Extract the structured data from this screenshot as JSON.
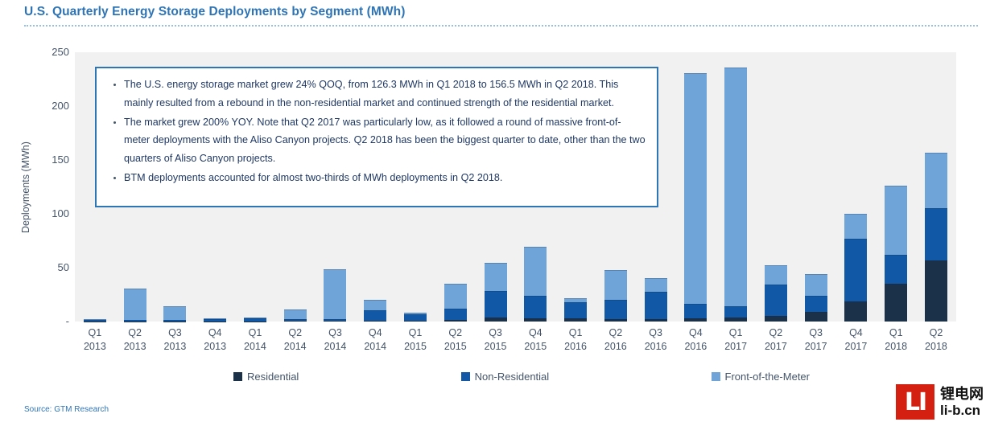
{
  "title": "U.S. Quarterly Energy Storage Deployments by Segment (MWh)",
  "annotation": {
    "bullets": [
      "The U.S. energy storage market grew 24% QOQ, from 126.3 MWh in Q1 2018 to 156.5 MWh in Q2 2018. This mainly resulted from a rebound in the non-residential market and continued strength of the residential market.",
      "The market grew 200% YOY. Note that Q2 2017 was particularly low, as it followed a round of massive front-of-meter deployments with the Aliso Canyon projects. Q2 2018 has been the biggest quarter to date, other than the two quarters of Aliso Canyon projects.",
      "BTM deployments accounted for almost two-thirds of MWh deployments in Q2 2018."
    ]
  },
  "source": "Source: GTM Research",
  "logo": {
    "mark": "LI",
    "name_cn": "锂电网",
    "domain": "li-b.cn"
  },
  "colors": {
    "title": "#2E74B5",
    "annotation_border": "#2E75B6",
    "annotation_text": "#1F3864",
    "axis_text": "#44546A",
    "plot_bg": "#F1F1F1",
    "residential": "#1B3049",
    "non_residential": "#1159A6",
    "front_of_meter": "#6FA4D8",
    "logo_red": "#D32011"
  },
  "chart_data": {
    "type": "bar",
    "stacked": true,
    "title": "U.S. Quarterly Energy Storage Deployments by Segment (MWh)",
    "xlabel": "",
    "ylabel": "Deployments (MWh)",
    "ylim": [
      0,
      250
    ],
    "yticks": [
      250,
      200,
      150,
      100,
      50,
      0
    ],
    "ytick_labels": [
      "250",
      "200",
      "150",
      "100",
      "50",
      "-"
    ],
    "grid": false,
    "legend_position": "bottom",
    "categories": [
      "Q1 2013",
      "Q2 2013",
      "Q3 2013",
      "Q4 2013",
      "Q1 2014",
      "Q2 2014",
      "Q3 2014",
      "Q4 2014",
      "Q1 2015",
      "Q2 2015",
      "Q3 2015",
      "Q4 2015",
      "Q1 2016",
      "Q2 2016",
      "Q3 2016",
      "Q4 2016",
      "Q1 2017",
      "Q2 2017",
      "Q3 2017",
      "Q4 2017",
      "Q1 2018",
      "Q2 2018"
    ],
    "series": [
      {
        "name": "Residential",
        "color_key": "residential",
        "values": [
          0.3,
          0.3,
          0.3,
          0.3,
          0.3,
          0.5,
          0.5,
          1.0,
          0.5,
          1.5,
          3.8,
          3.0,
          3.0,
          2.5,
          2.5,
          3.0,
          4.0,
          5.0,
          9.0,
          19.0,
          35.0,
          57.0
        ]
      },
      {
        "name": "Non-Residential",
        "color_key": "non_residential",
        "values": [
          1.5,
          1.5,
          1.2,
          2.2,
          2.5,
          1.5,
          1.5,
          9.5,
          6.0,
          10.5,
          24.3,
          21.3,
          15.0,
          17.5,
          25.0,
          13.5,
          10.5,
          29.0,
          15.0,
          58.0,
          27.0,
          48.0
        ]
      },
      {
        "name": "Front-of-the-Meter",
        "color_key": "front_of_meter",
        "values": [
          0.5,
          29.0,
          12.5,
          0.5,
          1.2,
          9.5,
          46.5,
          10.0,
          1.5,
          23.0,
          26.6,
          45.4,
          4.0,
          28.0,
          13.0,
          214.0,
          221.5,
          18.0,
          20.0,
          23.0,
          64.3,
          51.5
        ]
      }
    ],
    "totals_noted_in_text": {
      "Q1 2018": 126.3,
      "Q2 2018": 156.5
    }
  }
}
